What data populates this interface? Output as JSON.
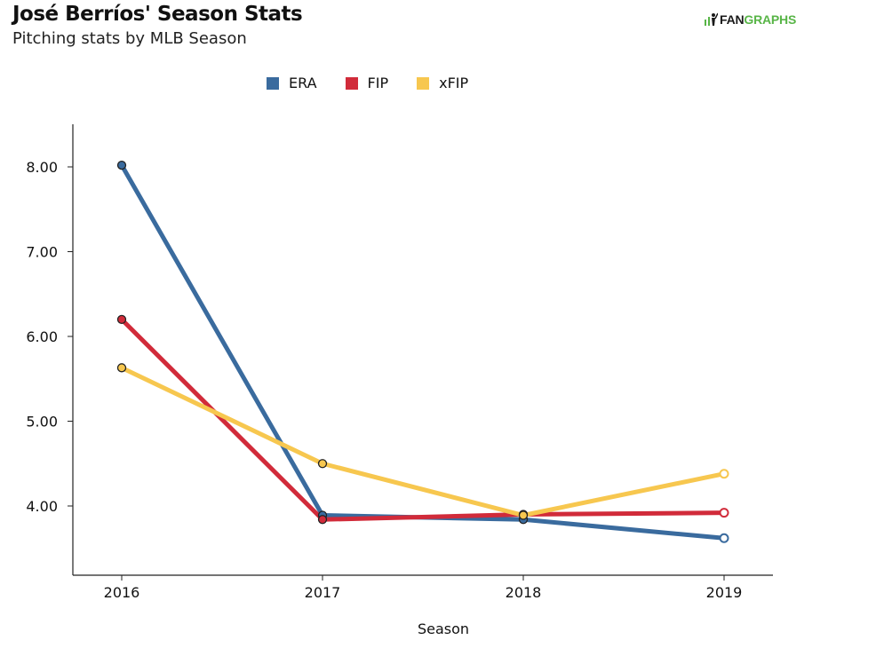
{
  "header": {
    "title": "José Berríos' Season Stats",
    "subtitle": "Pitching stats by MLB Season",
    "logo_fan": "FAN",
    "logo_graphs": "GRAPHS"
  },
  "colors": {
    "era": "#3a6b9e",
    "fip": "#d12b3a",
    "xfip": "#f7c74f",
    "axis": "#222222",
    "logo_green": "#58b547"
  },
  "chart_data": {
    "type": "line",
    "title": "José Berríos' Season Stats",
    "subtitle": "Pitching stats by MLB Season",
    "xlabel": "Season",
    "ylabel": "",
    "categories": [
      "2016",
      "2017",
      "2018",
      "2019"
    ],
    "ylim": [
      3.2,
      8.5
    ],
    "yticks": [
      4,
      5,
      6,
      7,
      8
    ],
    "ytick_labels": [
      "4.00",
      "5.00",
      "6.00",
      "7.00",
      "8.00"
    ],
    "grid": false,
    "legend_position": "top",
    "series": [
      {
        "name": "ERA",
        "values": [
          8.02,
          3.89,
          3.84,
          3.62
        ],
        "color": "#3a6b9e",
        "hollow_last": true
      },
      {
        "name": "FIP",
        "values": [
          6.2,
          3.84,
          3.9,
          3.92
        ],
        "color": "#d12b3a",
        "hollow_last": true
      },
      {
        "name": "xFIP",
        "values": [
          5.63,
          4.5,
          3.89,
          4.38
        ],
        "color": "#f7c74f",
        "hollow_last": true
      }
    ]
  }
}
